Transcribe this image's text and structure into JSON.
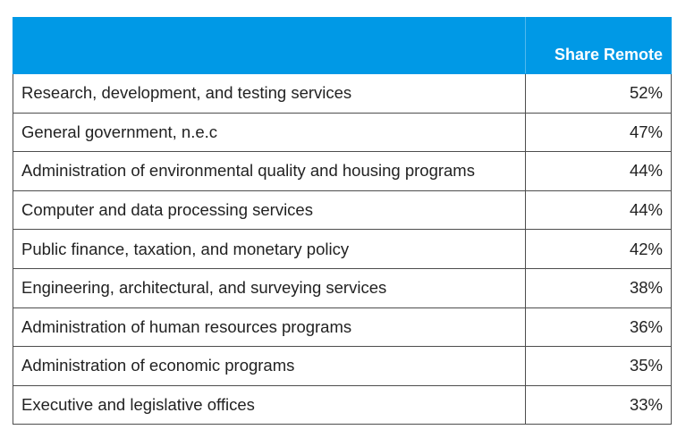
{
  "chart_data": {
    "type": "table",
    "columns": [
      "",
      "Share Remote"
    ],
    "rows": [
      {
        "category": "Research, development, and testing services",
        "share_remote": "52%"
      },
      {
        "category": "General government, n.e.c",
        "share_remote": "47%"
      },
      {
        "category": "Administration of environmental quality and housing programs",
        "share_remote": "44%"
      },
      {
        "category": "Computer and data processing services",
        "share_remote": "44%"
      },
      {
        "category": "Public finance, taxation, and monetary policy",
        "share_remote": "42%"
      },
      {
        "category": "Engineering, architectural, and surveying services",
        "share_remote": "38%"
      },
      {
        "category": "Administration of human resources programs",
        "share_remote": "36%"
      },
      {
        "category": "Administration of economic programs",
        "share_remote": "35%"
      },
      {
        "category": "Executive and legislative offices",
        "share_remote": "33%"
      }
    ],
    "header_color": "#0099e6"
  }
}
